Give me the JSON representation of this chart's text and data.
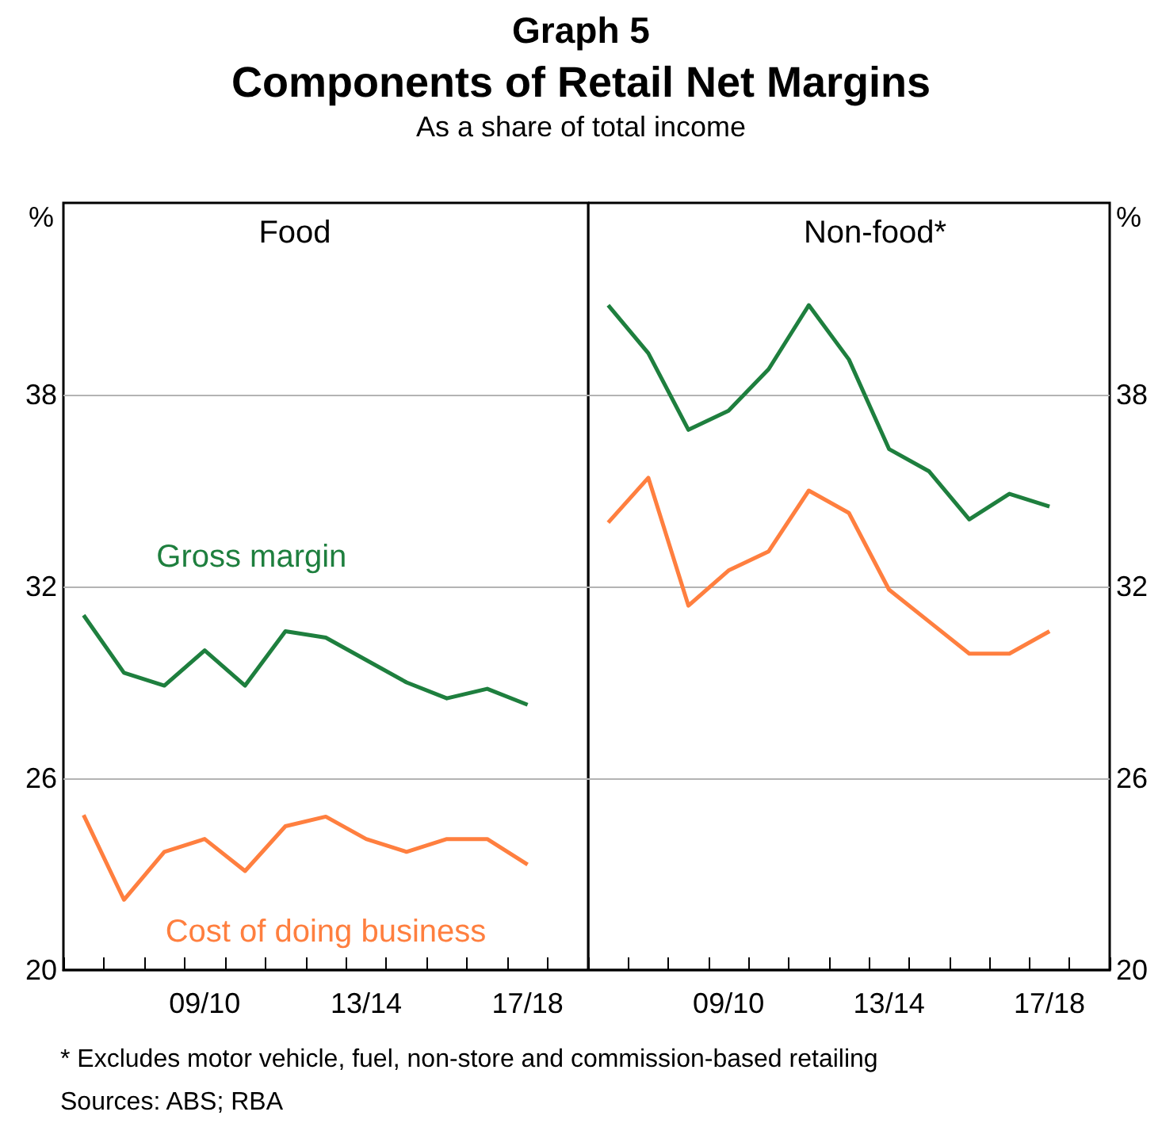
{
  "chart_data": [
    {
      "type": "line",
      "title": "Food",
      "ylabel": "%",
      "annotations": [
        "Graph 5",
        "Components of Retail Net Margins",
        "As a share of total income",
        "* Excludes motor vehicle, fuel, non-store and commission-based retailing",
        "Sources: ABS; RBA"
      ],
      "categories": [
        null,
        null,
        null,
        "09/10",
        null,
        null,
        null,
        "13/14",
        null,
        null,
        null,
        "17/18",
        null
      ],
      "series": [
        {
          "name": "Gross margin",
          "color": "#1e7f3e",
          "values": [
            31.1,
            29.3,
            28.9,
            30.0,
            28.9,
            30.6,
            30.4,
            29.7,
            29.0,
            28.5,
            28.8,
            28.3,
            null
          ]
        },
        {
          "name": "Cost of doing business",
          "color": "#ff7f3f",
          "values": [
            24.85,
            22.2,
            23.7,
            24.1,
            23.1,
            24.5,
            24.8,
            24.1,
            23.7,
            24.1,
            24.1,
            23.3,
            null
          ]
        }
      ],
      "ylim": [
        20,
        44
      ],
      "yticks": [
        20,
        26,
        32,
        38
      ],
      "grid": "y",
      "legend": false
    },
    {
      "type": "line",
      "title": "Non-food*",
      "ylabel": "%",
      "categories": [
        null,
        null,
        null,
        "09/10",
        null,
        null,
        null,
        "13/14",
        null,
        null,
        null,
        "17/18",
        null
      ],
      "series": [
        {
          "color": "#1e7f3e",
          "values": [
            40.8,
            39.3,
            36.9,
            37.5,
            38.8,
            40.8,
            39.1,
            36.3,
            35.6,
            34.1,
            34.9,
            34.5,
            null
          ]
        },
        {
          "color": "#ff7f3f",
          "values": [
            34.0,
            35.4,
            31.4,
            32.5,
            33.1,
            35.0,
            34.3,
            31.9,
            30.9,
            29.9,
            29.9,
            30.6,
            null
          ]
        }
      ],
      "ylim": [
        20,
        44
      ],
      "yticks": [
        20,
        26,
        32,
        38
      ],
      "grid": "y",
      "legend": false
    }
  ]
}
